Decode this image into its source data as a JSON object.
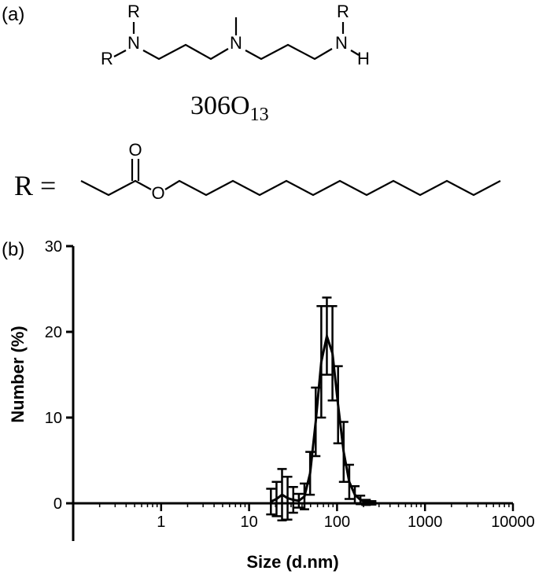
{
  "structure": {
    "panel": "(a)",
    "atoms": [
      "R",
      "N",
      "R",
      "N",
      "R",
      "N",
      "H",
      "O",
      "O"
    ],
    "compound": "306O",
    "compound_subscript": "13",
    "r_equals": "R ="
  },
  "chart_data": {
    "type": "line",
    "panel": "(b)",
    "x_label": "Size (d.nm)",
    "y_label": "Number (%)",
    "x_log": true,
    "minor_ticks": true,
    "color": "#000000",
    "xlim": [
      0.1,
      10000
    ],
    "xticks": [
      1,
      10,
      100,
      1000,
      10000
    ],
    "ylim": [
      0,
      30
    ],
    "yticks": [
      0,
      10,
      20,
      30
    ],
    "x": [
      17.7,
      20.5,
      23.7,
      27.4,
      31.8,
      36.8,
      42.6,
      49.4,
      57.2,
      66.2,
      76.6,
      88.7,
      102.7,
      118.9,
      137.7,
      159.4,
      184.6,
      213.7,
      247.4,
      286.5
    ],
    "series": [
      {
        "values": [
          0.2,
          0.5,
          1.0,
          0.6,
          0.4,
          0.3,
          0.8,
          3.5,
          9.5,
          16.5,
          19.5,
          17.5,
          11.5,
          6.0,
          2.5,
          1.0,
          0.4,
          0.1,
          0.05,
          0
        ],
        "errors": [
          1.5,
          2.0,
          3.0,
          2.5,
          1.5,
          0.8,
          1.5,
          2.5,
          4.0,
          6.5,
          4.5,
          5.5,
          4.5,
          3.5,
          2.0,
          1.0,
          0.5,
          0.3,
          0.2,
          0
        ]
      }
    ]
  }
}
